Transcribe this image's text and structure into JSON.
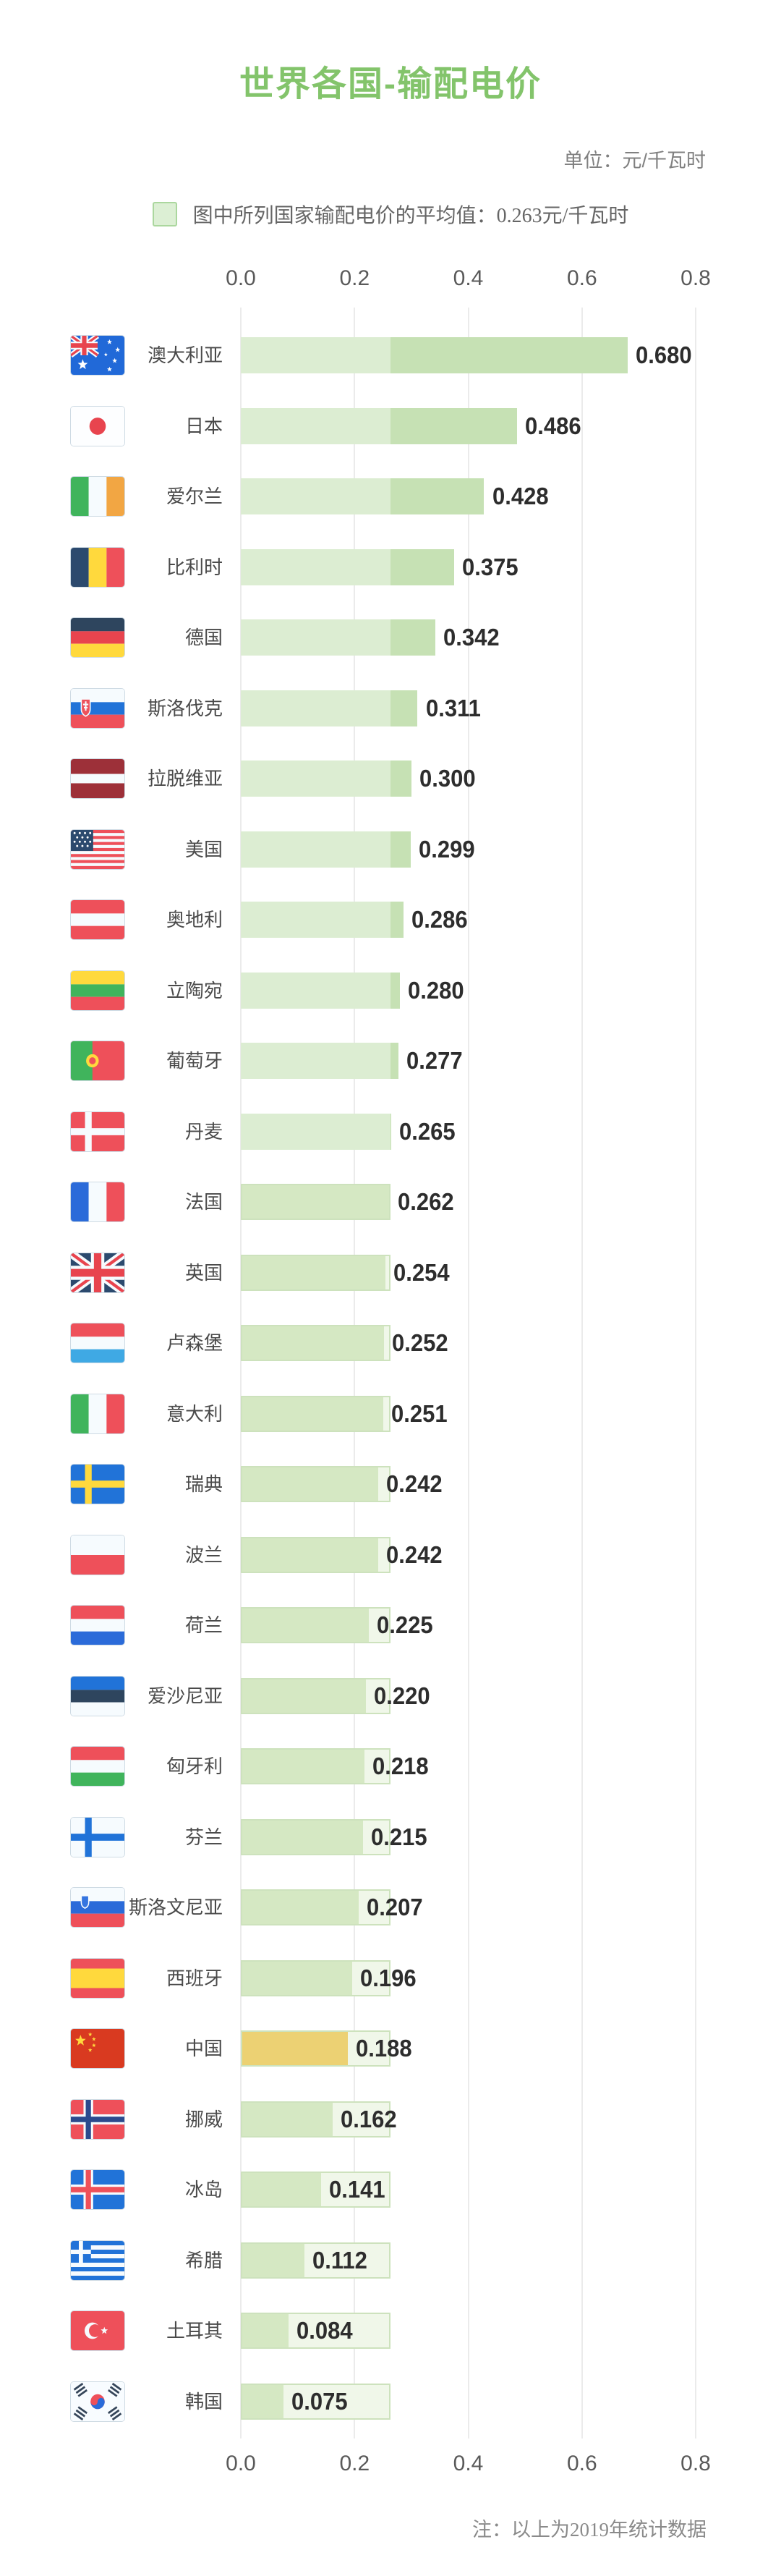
{
  "page": {
    "title": "世界各国-输配电价",
    "unit_label": "单位：元/千瓦时",
    "footnote": "注：以上为2019年统计数据"
  },
  "legend": {
    "label": "图中所列国家输配电价的平均值：0.263元/千瓦时",
    "swatch_color": "#dcefd4"
  },
  "chart_data": {
    "type": "bar",
    "orientation": "horizontal",
    "title": "世界各国-输配电价",
    "unit": "元/千瓦时",
    "average_value": 0.263,
    "xlim": [
      0,
      0.8
    ],
    "axis_ticks": [
      "0.0",
      "0.2",
      "0.4",
      "0.6",
      "0.8"
    ],
    "grid": true,
    "legend_position": "top-center",
    "highlight": {
      "country": "中国",
      "color": "#ecd173"
    },
    "rows": [
      {
        "country": "澳大利亚",
        "flag": "au",
        "value": 0.68
      },
      {
        "country": "日本",
        "flag": "jp",
        "value": 0.486
      },
      {
        "country": "爱尔兰",
        "flag": "ie",
        "value": 0.428
      },
      {
        "country": "比利时",
        "flag": "be",
        "value": 0.375
      },
      {
        "country": "德国",
        "flag": "de",
        "value": 0.342
      },
      {
        "country": "斯洛伐克",
        "flag": "sk",
        "value": 0.311
      },
      {
        "country": "拉脱维亚",
        "flag": "lv",
        "value": 0.3
      },
      {
        "country": "美国",
        "flag": "us",
        "value": 0.299
      },
      {
        "country": "奥地利",
        "flag": "at",
        "value": 0.286
      },
      {
        "country": "立陶宛",
        "flag": "lt",
        "value": 0.28
      },
      {
        "country": "葡萄牙",
        "flag": "pt",
        "value": 0.277
      },
      {
        "country": "丹麦",
        "flag": "dk",
        "value": 0.265
      },
      {
        "country": "法国",
        "flag": "fr",
        "value": 0.262
      },
      {
        "country": "英国",
        "flag": "gb",
        "value": 0.254
      },
      {
        "country": "卢森堡",
        "flag": "lu",
        "value": 0.252
      },
      {
        "country": "意大利",
        "flag": "it",
        "value": 0.251
      },
      {
        "country": "瑞典",
        "flag": "se",
        "value": 0.242
      },
      {
        "country": "波兰",
        "flag": "pl",
        "value": 0.242
      },
      {
        "country": "荷兰",
        "flag": "nl",
        "value": 0.225
      },
      {
        "country": "爱沙尼亚",
        "flag": "ee",
        "value": 0.22
      },
      {
        "country": "匈牙利",
        "flag": "hu",
        "value": 0.218
      },
      {
        "country": "芬兰",
        "flag": "fi",
        "value": 0.215
      },
      {
        "country": "斯洛文尼亚",
        "flag": "si",
        "value": 0.207
      },
      {
        "country": "西班牙",
        "flag": "es",
        "value": 0.196
      },
      {
        "country": "中国",
        "flag": "cn",
        "value": 0.188
      },
      {
        "country": "挪威",
        "flag": "no",
        "value": 0.162
      },
      {
        "country": "冰岛",
        "flag": "is",
        "value": 0.141
      },
      {
        "country": "希腊",
        "flag": "gr",
        "value": 0.112
      },
      {
        "country": "土耳其",
        "flag": "tr",
        "value": 0.084
      },
      {
        "country": "韩国",
        "flag": "kr",
        "value": 0.075
      }
    ]
  },
  "colors": {
    "title_green": "#83c46b",
    "bar_above_light": "#dcedd2",
    "bar_above_dark": "#c6e1b4",
    "bar_below": "#d5e8c3",
    "band_fill": "#f0f7e9",
    "band_border": "#cde2bd",
    "china_gold": "#ecd173",
    "gridline": "#ebebeb"
  }
}
